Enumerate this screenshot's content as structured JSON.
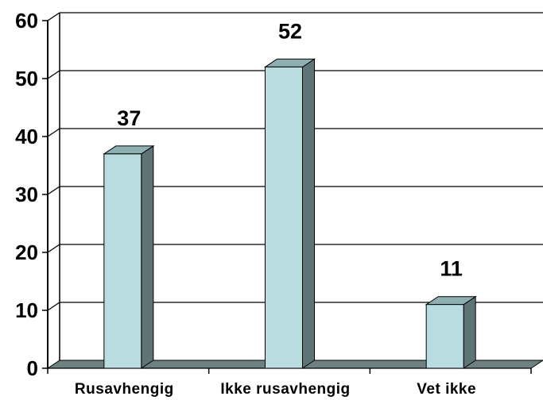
{
  "chart_data": {
    "type": "bar",
    "style": "3d",
    "categories": [
      "Rusavhengig",
      "Ikke rusavhengig",
      "Vet ikke"
    ],
    "values": [
      37,
      52,
      11
    ],
    "data_labels": [
      "37",
      "52",
      "11"
    ],
    "title": "",
    "xlabel": "",
    "ylabel": "",
    "ylim": [
      0,
      60
    ],
    "yticks": [
      0,
      10,
      20,
      30,
      40,
      50,
      60
    ],
    "ytick_labels": [
      "0",
      "10",
      "20",
      "30",
      "40",
      "50",
      "60"
    ],
    "grid": true,
    "legend": "none",
    "colors": {
      "bar_front": "#b8dcdf",
      "bar_side": "#5e7476",
      "bar_top": "#8fb0b3",
      "floor": "#6d8082",
      "grid": "#000000",
      "background": "#ffffff"
    }
  }
}
